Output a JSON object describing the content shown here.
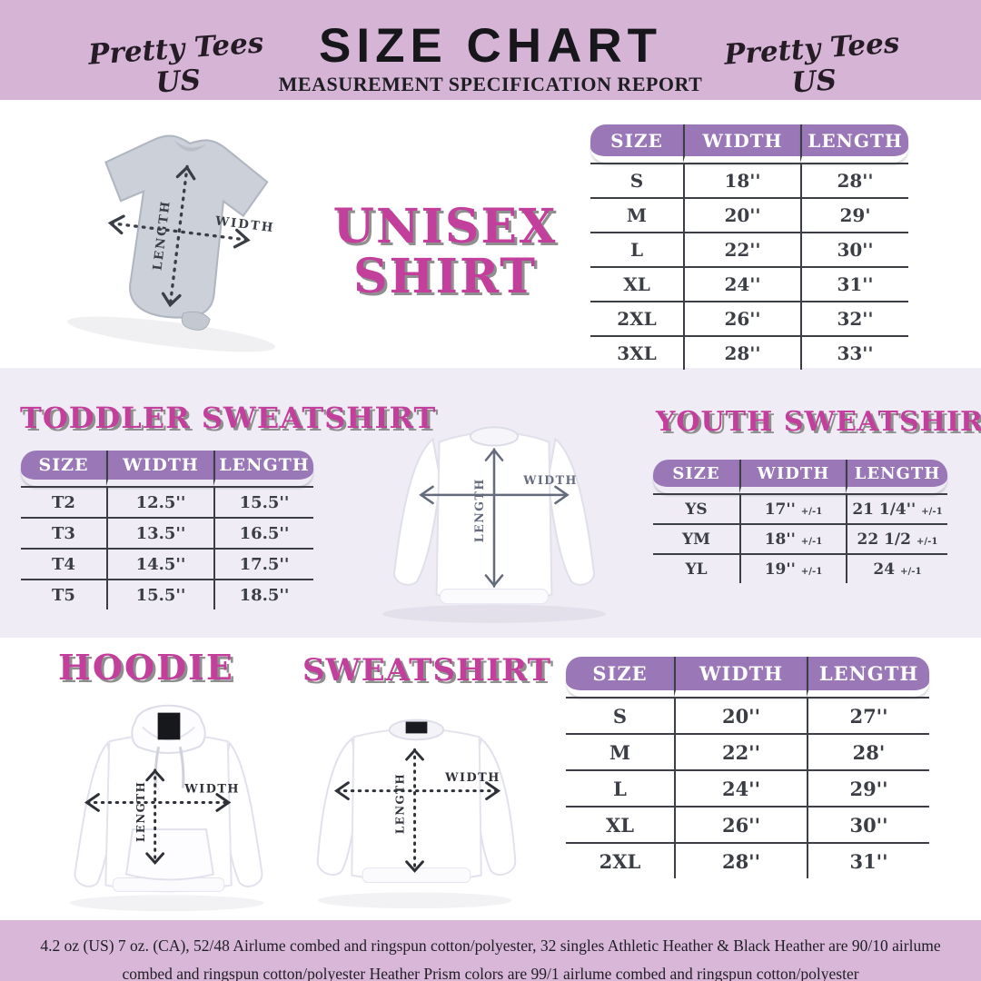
{
  "header": {
    "brand_left": "Pretty Tees US",
    "brand_right": "Pretty Tees US",
    "title": "SIZE CHART",
    "subtitle": "MEASUREMENT SPECIFICATION REPORT"
  },
  "diagram": {
    "width_label": "WIDTH",
    "length_label": "LENGTH"
  },
  "unisex": {
    "title_line1": "UNISEX",
    "title_line2": "SHIRT",
    "table": {
      "headers": [
        "SIZE",
        "WIDTH",
        "LENGTH"
      ],
      "rows": [
        [
          "S",
          "18''",
          "28''"
        ],
        [
          "M",
          "20''",
          "29'"
        ],
        [
          "L",
          "22''",
          "30''"
        ],
        [
          "XL",
          "24''",
          "31''"
        ],
        [
          "2XL",
          "26''",
          "32''"
        ],
        [
          "3XL",
          "28''",
          "33''"
        ]
      ]
    }
  },
  "toddler": {
    "title": "TODDLER SWEATSHIRT",
    "table": {
      "headers": [
        "SIZE",
        "WIDTH",
        "LENGTH"
      ],
      "rows": [
        [
          "T2",
          "12.5''",
          "15.5''"
        ],
        [
          "T3",
          "13.5''",
          "16.5''"
        ],
        [
          "T4",
          "14.5''",
          "17.5''"
        ],
        [
          "T5",
          "15.5''",
          "18.5''"
        ]
      ]
    }
  },
  "youth": {
    "title": "YOUTH SWEATSHIRT",
    "table": {
      "headers": [
        "SIZE",
        "WIDTH",
        "LENGTH"
      ],
      "rows": [
        [
          "YS",
          "17'' +/-1",
          "21 1/4'' +/-1"
        ],
        [
          "YM",
          "18'' +/-1",
          "22 1/2 +/-1"
        ],
        [
          "YL",
          "19'' +/-1",
          "24 +/-1"
        ]
      ]
    }
  },
  "hoodie": {
    "title": "HOODIE"
  },
  "sweatshirt": {
    "title": "SWEATSHIRT",
    "table": {
      "headers": [
        "SIZE",
        "WIDTH",
        "LENGTH"
      ],
      "rows": [
        [
          "S",
          "20''",
          "27''"
        ],
        [
          "M",
          "22''",
          "28'"
        ],
        [
          "L",
          "24''",
          "29''"
        ],
        [
          "XL",
          "26''",
          "30''"
        ],
        [
          "2XL",
          "28''",
          "31''"
        ]
      ]
    }
  },
  "footer": {
    "text": "4.2 oz (US) 7 oz. (CA), 52/48 Airlume combed and ringspun cotton/polyester, 32 singles Athletic Heather & Black Heather are 90/10 airlume combed and ringspun cotton/polyester Heather Prism colors are 99/1 airlume combed and ringspun cotton/polyester"
  },
  "colors": {
    "header_band": "#d6b4d6",
    "footer_band": "#d9b7d8",
    "middle_band": "#efecf6",
    "table_header_purple": "#9a78b8",
    "title_pink": "#c33f9c",
    "ink": "#3b3e45"
  }
}
